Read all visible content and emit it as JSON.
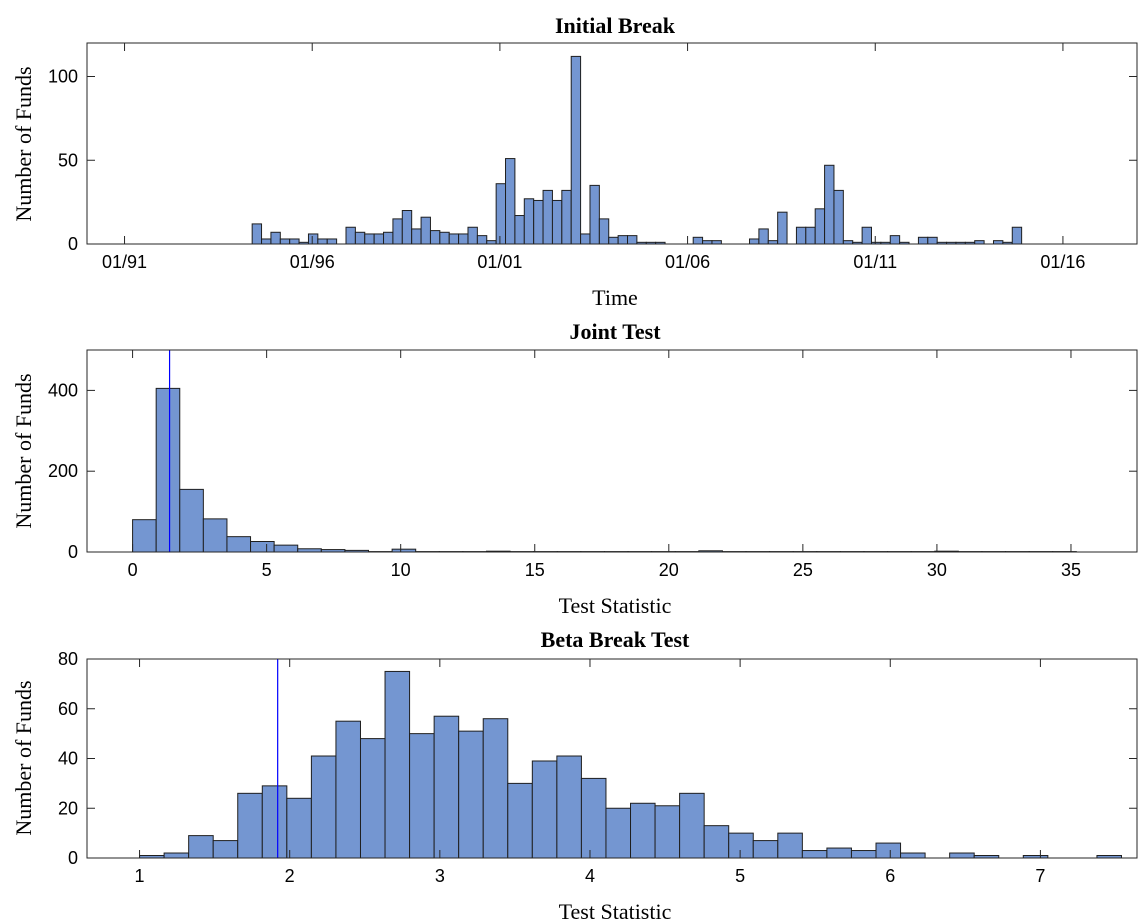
{
  "chart_data": [
    {
      "type": "bar",
      "title": "Initial Break",
      "xlabel": "Time",
      "ylabel": "Number of Funds",
      "x_tick_labels": [
        "01/91",
        "01/96",
        "01/01",
        "01/06",
        "01/11",
        "01/16"
      ],
      "x_tick_values": [
        1991.0,
        1996.0,
        2001.0,
        2006.0,
        2011.0,
        2016.0
      ],
      "y_ticks": [
        0,
        50,
        100
      ],
      "xlim": [
        1990.0,
        2018.0
      ],
      "ylim": [
        0,
        120
      ],
      "bin_start": 1994.4,
      "bin_width": 0.25,
      "values": [
        12,
        3,
        7,
        3,
        3,
        1,
        6,
        3,
        3,
        0,
        10,
        7,
        6,
        6,
        7,
        15,
        20,
        9,
        16,
        8,
        7,
        6,
        6,
        10,
        5,
        2,
        36,
        51,
        17,
        27,
        26,
        32,
        26,
        32,
        112,
        6,
        35,
        15,
        4,
        5,
        5,
        1,
        1,
        1,
        0,
        0,
        0,
        4,
        2,
        2,
        0,
        0,
        0,
        3,
        9,
        2,
        19,
        0,
        10,
        10,
        21,
        47,
        32,
        2,
        1,
        10,
        1,
        1,
        5,
        1,
        0,
        4,
        4,
        1,
        1,
        1,
        1,
        2,
        0,
        2,
        1,
        10
      ],
      "grid": false
    },
    {
      "type": "bar",
      "title": "Joint Test",
      "xlabel": "Test Statistic",
      "ylabel": "Number of Funds",
      "x_ticks": [
        0,
        5,
        10,
        15,
        20,
        25,
        30,
        35
      ],
      "y_ticks": [
        0,
        200,
        400
      ],
      "xlim": [
        -1.7,
        37.5
      ],
      "ylim": [
        0,
        500
      ],
      "bin_start": 0,
      "bin_width": 0.88,
      "values": [
        80,
        405,
        155,
        82,
        38,
        26,
        17,
        8,
        6,
        4,
        1,
        7,
        1,
        1,
        1,
        2,
        1,
        1,
        1,
        1,
        1,
        1,
        1,
        1,
        3,
        1,
        1,
        1,
        1,
        1,
        1,
        1,
        1,
        1,
        2,
        1,
        1,
        1,
        1,
        1
      ],
      "reference_line_x": 1.38,
      "grid": false
    },
    {
      "type": "bar",
      "title": "Beta Break Test",
      "xlabel": "Test Statistic",
      "ylabel": "Number of Funds",
      "x_ticks": [
        1,
        2,
        3,
        4,
        5,
        6,
        7
      ],
      "y_ticks": [
        0,
        20,
        40,
        60,
        80
      ],
      "xlim": [
        0.65,
        7.65
      ],
      "ylim": [
        0,
        80
      ],
      "bin_start": 1.0,
      "bin_width": 0.1635,
      "values": [
        1,
        2,
        9,
        7,
        26,
        29,
        24,
        41,
        55,
        48,
        75,
        50,
        57,
        51,
        56,
        30,
        39,
        41,
        32,
        20,
        22,
        21,
        26,
        13,
        10,
        7,
        10,
        3,
        4,
        3,
        6,
        2,
        0,
        2,
        1,
        0,
        1,
        0,
        0,
        1
      ],
      "reference_line_x": 1.92,
      "grid": false
    }
  ]
}
